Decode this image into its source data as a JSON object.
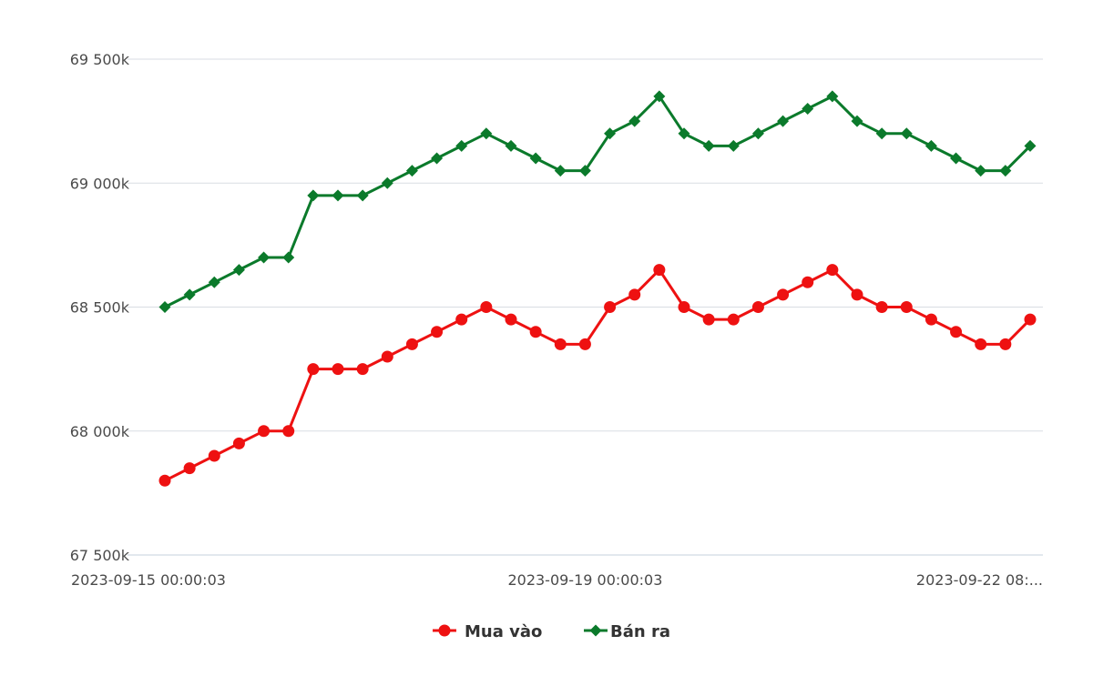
{
  "chart_data": {
    "type": "line",
    "title": "",
    "xlabel": "",
    "ylabel": "",
    "ylim": [
      67500,
      69500
    ],
    "y_ticks": [
      {
        "value": 67500,
        "label": "67 500k"
      },
      {
        "value": 68000,
        "label": "68 000k"
      },
      {
        "value": 68500,
        "label": "68 500k"
      },
      {
        "value": 69000,
        "label": "69 000k"
      },
      {
        "value": 69500,
        "label": "69 500k"
      }
    ],
    "x_tick_labels": [
      {
        "index": 0,
        "label": "2023-09-15 00:00:03"
      },
      {
        "index": 17,
        "label": "2023-09-19 00:00:03"
      },
      {
        "index": 35,
        "label": "2023-09-22 08:..."
      }
    ],
    "point_count": 36,
    "grid": true,
    "legend_position": "bottom",
    "series": [
      {
        "name": "Mua vào",
        "color": "#ee1111",
        "marker": "circle",
        "values": [
          67800,
          67850,
          67900,
          67950,
          68000,
          68000,
          68250,
          68250,
          68250,
          68300,
          68350,
          68400,
          68450,
          68500,
          68450,
          68400,
          68350,
          68350,
          68500,
          68550,
          68650,
          68500,
          68450,
          68450,
          68500,
          68550,
          68600,
          68650,
          68550,
          68500,
          68500,
          68450,
          68400,
          68350,
          68350,
          68450
        ]
      },
      {
        "name": "Bán ra",
        "color": "#0b7a2b",
        "marker": "diamond",
        "values": [
          68500,
          68550,
          68600,
          68650,
          68700,
          68700,
          68950,
          68950,
          68950,
          69000,
          69050,
          69100,
          69150,
          69200,
          69150,
          69100,
          69050,
          69050,
          69200,
          69250,
          69350,
          69200,
          69150,
          69150,
          69200,
          69250,
          69300,
          69350,
          69250,
          69200,
          69200,
          69150,
          69100,
          69050,
          69050,
          69150
        ]
      }
    ]
  }
}
